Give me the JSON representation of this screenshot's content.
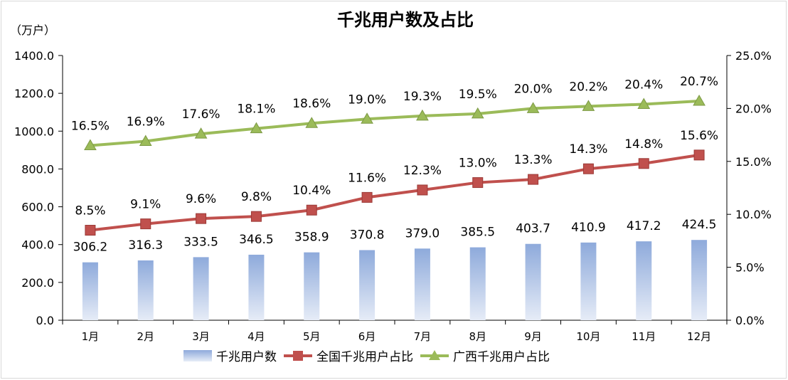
{
  "chart_data": {
    "type": "bar+line",
    "title": "千兆用户数及占比",
    "ylabel_left": "（万户）",
    "categories": [
      "1月",
      "2月",
      "3月",
      "4月",
      "5月",
      "6月",
      "7月",
      "8月",
      "9月",
      "10月",
      "11月",
      "12月"
    ],
    "y_left": {
      "min": 0,
      "max": 1400,
      "step": 200,
      "ticks": [
        "0.0",
        "200.0",
        "400.0",
        "600.0",
        "800.0",
        "1000.0",
        "1200.0",
        "1400.0"
      ]
    },
    "y_right": {
      "min": 0,
      "max": 25,
      "step": 5,
      "ticks": [
        "0.0%",
        "5.0%",
        "10.0%",
        "15.0%",
        "20.0%",
        "25.0%"
      ]
    },
    "series": [
      {
        "name": "千兆用户数",
        "type": "bar",
        "axis": "left",
        "color": "#8faadc",
        "values": [
          306.2,
          316.3,
          333.5,
          346.5,
          358.9,
          370.8,
          379.0,
          385.5,
          403.7,
          410.9,
          417.2,
          424.5
        ],
        "labels": [
          "306.2",
          "316.3",
          "333.5",
          "346.5",
          "358.9",
          "370.8",
          "379.0",
          "385.5",
          "403.7",
          "410.9",
          "417.2",
          "424.5"
        ]
      },
      {
        "name": "全国千兆用户占比",
        "type": "line",
        "axis": "right",
        "color": "#c0504d",
        "marker": "square",
        "values": [
          8.5,
          9.1,
          9.6,
          9.8,
          10.4,
          11.6,
          12.3,
          13.0,
          13.3,
          14.3,
          14.8,
          15.6
        ],
        "labels": [
          "8.5%",
          "9.1%",
          "9.6%",
          "9.8%",
          "10.4%",
          "11.6%",
          "12.3%",
          "13.0%",
          "13.3%",
          "14.3%",
          "14.8%",
          "15.6%"
        ]
      },
      {
        "name": "广西千兆用户占比",
        "type": "line",
        "axis": "right",
        "color": "#9bbb59",
        "marker": "triangle",
        "values": [
          16.5,
          16.9,
          17.6,
          18.1,
          18.6,
          19.0,
          19.3,
          19.5,
          20.0,
          20.2,
          20.4,
          20.7
        ],
        "labels": [
          "16.5%",
          "16.9%",
          "17.6%",
          "18.1%",
          "18.6%",
          "19.0%",
          "19.3%",
          "19.5%",
          "20.0%",
          "20.2%",
          "20.4%",
          "20.7%"
        ]
      }
    ],
    "legend_position": "bottom",
    "grid": false
  }
}
